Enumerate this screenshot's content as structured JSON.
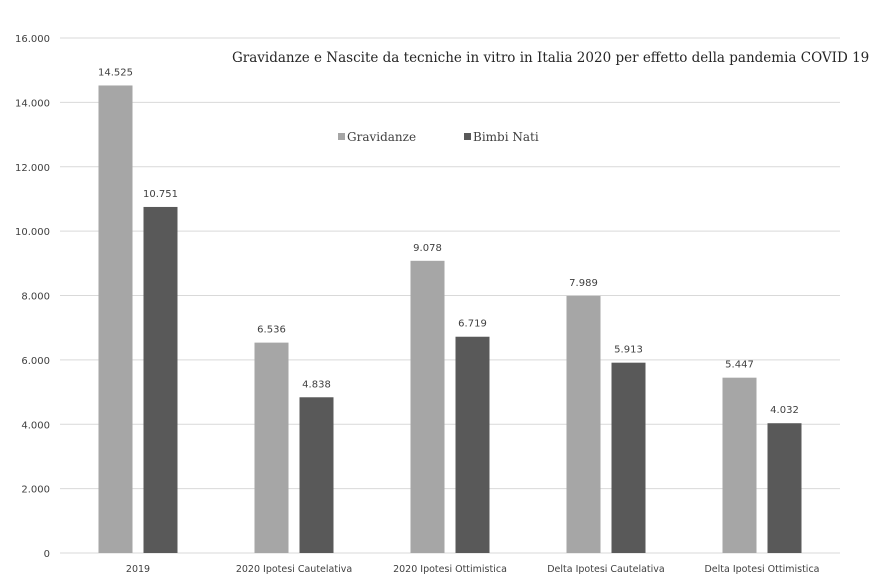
{
  "chart_data": {
    "type": "bar",
    "title": "Gravidanze e Nascite da tecniche in vitro in Italia 2020 per effetto della pandemia COVID 19",
    "xlabel": "",
    "ylabel": "",
    "categories": [
      "2019",
      "2020 Ipotesi Cautelativa",
      "2020 Ipotesi Ottimistica",
      "Delta Ipotesi Cautelativa",
      "Delta Ipotesi Ottimistica"
    ],
    "series": [
      {
        "name": "Gravidanze",
        "values": [
          14525,
          6536,
          9078,
          7989,
          5447
        ],
        "labels": [
          "14.525",
          "6.536",
          "9.078",
          "7.989",
          "5.447"
        ],
        "color": "#a6a6a6"
      },
      {
        "name": "Bimbi Nati",
        "values": [
          10751,
          4838,
          6719,
          5913,
          4032
        ],
        "labels": [
          "10.751",
          "4.838",
          "6.719",
          "5.913",
          "4.032"
        ],
        "color": "#595959"
      }
    ],
    "ylim": [
      0,
      16000
    ],
    "yticks": [
      0,
      2000,
      4000,
      6000,
      8000,
      10000,
      12000,
      14000,
      16000
    ],
    "ytick_labels": [
      "0",
      "2.000",
      "4.000",
      "6.000",
      "8.000",
      "10.000",
      "12.000",
      "14.000",
      "16.000"
    ],
    "grid": true,
    "legend_position": "top-center",
    "gridline_color": "#d9d9d9"
  }
}
